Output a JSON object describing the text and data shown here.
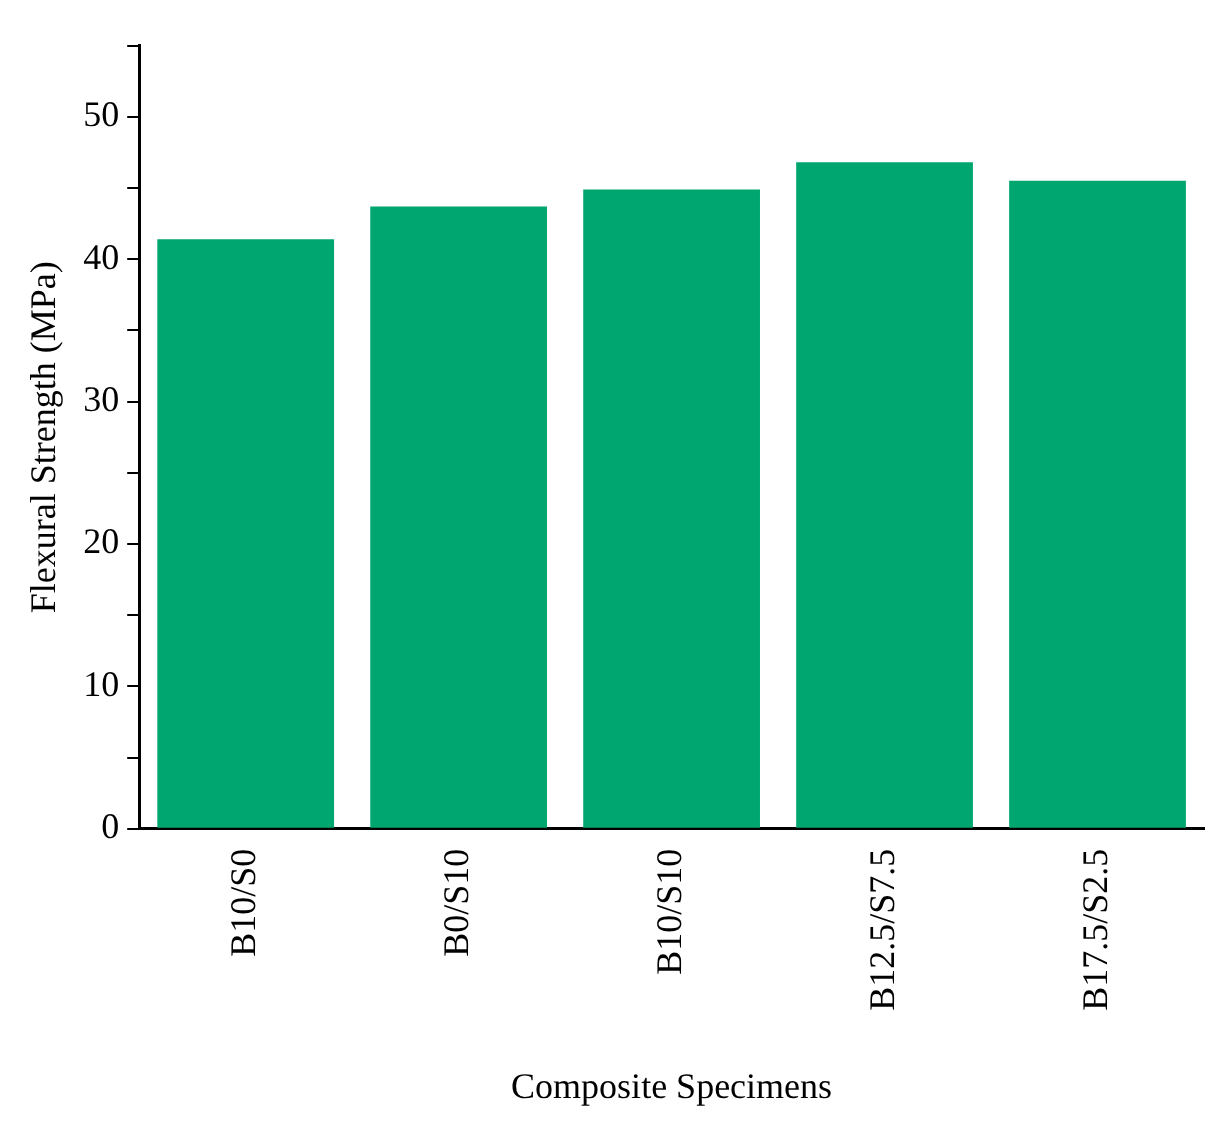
{
  "chart_data": {
    "type": "bar",
    "xlabel": "Composite Specimens",
    "ylabel": "Flexural Strength (MPa)",
    "categories": [
      "B10/S0",
      "B0/S10",
      "B10/S10",
      "B12.5/S7.5",
      "B17.5/S2.5"
    ],
    "values": [
      41.4,
      43.7,
      44.9,
      46.8,
      45.5
    ],
    "color": "#00a66f",
    "ylim": [
      0,
      55
    ],
    "yticks": [
      0,
      {
        "value": 5,
        "label": null
      },
      10,
      {
        "value": 15,
        "label": null
      },
      20,
      {
        "value": 25,
        "label": null
      },
      30,
      {
        "value": 35,
        "label": null
      },
      40,
      {
        "value": 45,
        "label": null
      },
      50,
      {
        "value": 55,
        "label": null
      }
    ],
    "grid": false,
    "legend": false
  }
}
